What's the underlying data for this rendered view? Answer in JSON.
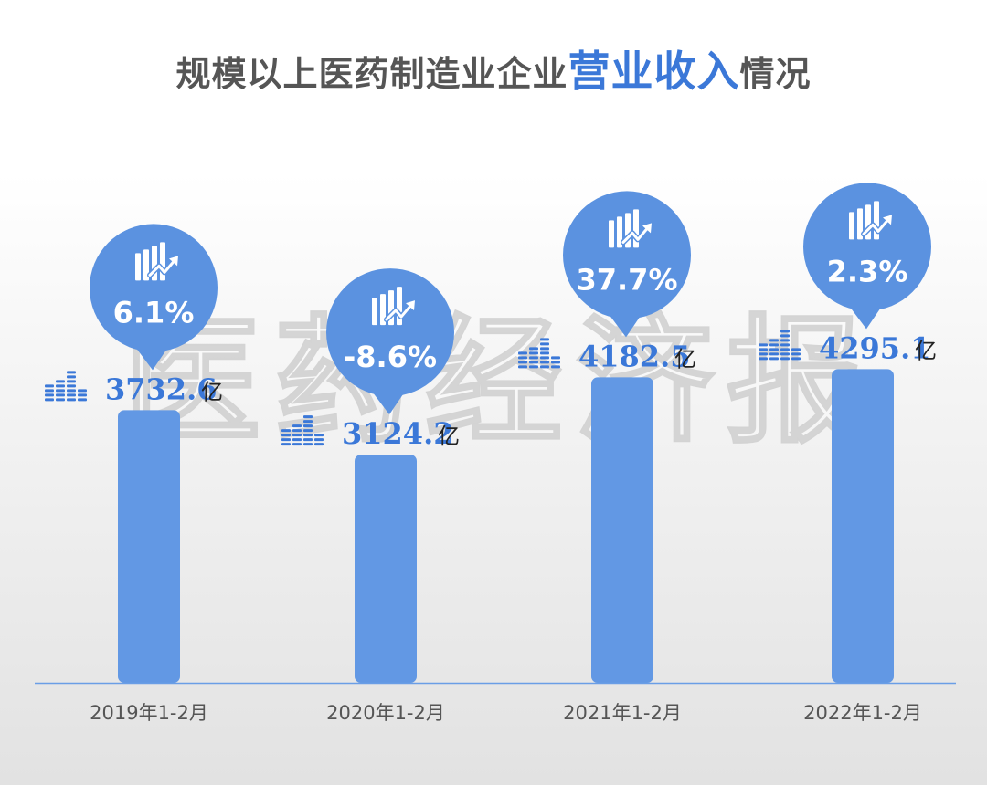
{
  "chart_data": {
    "type": "bar",
    "title_parts": [
      "规模以上医药制造业企业",
      "营业收入",
      "情况"
    ],
    "categories": [
      "2019年1-2月",
      "2020年1-2月",
      "2021年1-2月",
      "2022年1-2月"
    ],
    "values": [
      3732.6,
      3124.2,
      4182.5,
      4295.1
    ],
    "value_labels": [
      "3732.6",
      "3124.2",
      "4182.5",
      "4295.1"
    ],
    "unit": "亿",
    "growth_labels": [
      "6.1%",
      "-8.6%",
      "37.7%",
      "2.3%"
    ],
    "xlabel": "",
    "ylabel": "",
    "grid": false,
    "legend": "none"
  },
  "watermark": "医药经济报",
  "colors": {
    "bar": "#6298e4",
    "bubble": "#5b92e0",
    "label": "#3b78d8",
    "axis": "#6a9ee6",
    "title": "#555555",
    "category": "#555555"
  }
}
